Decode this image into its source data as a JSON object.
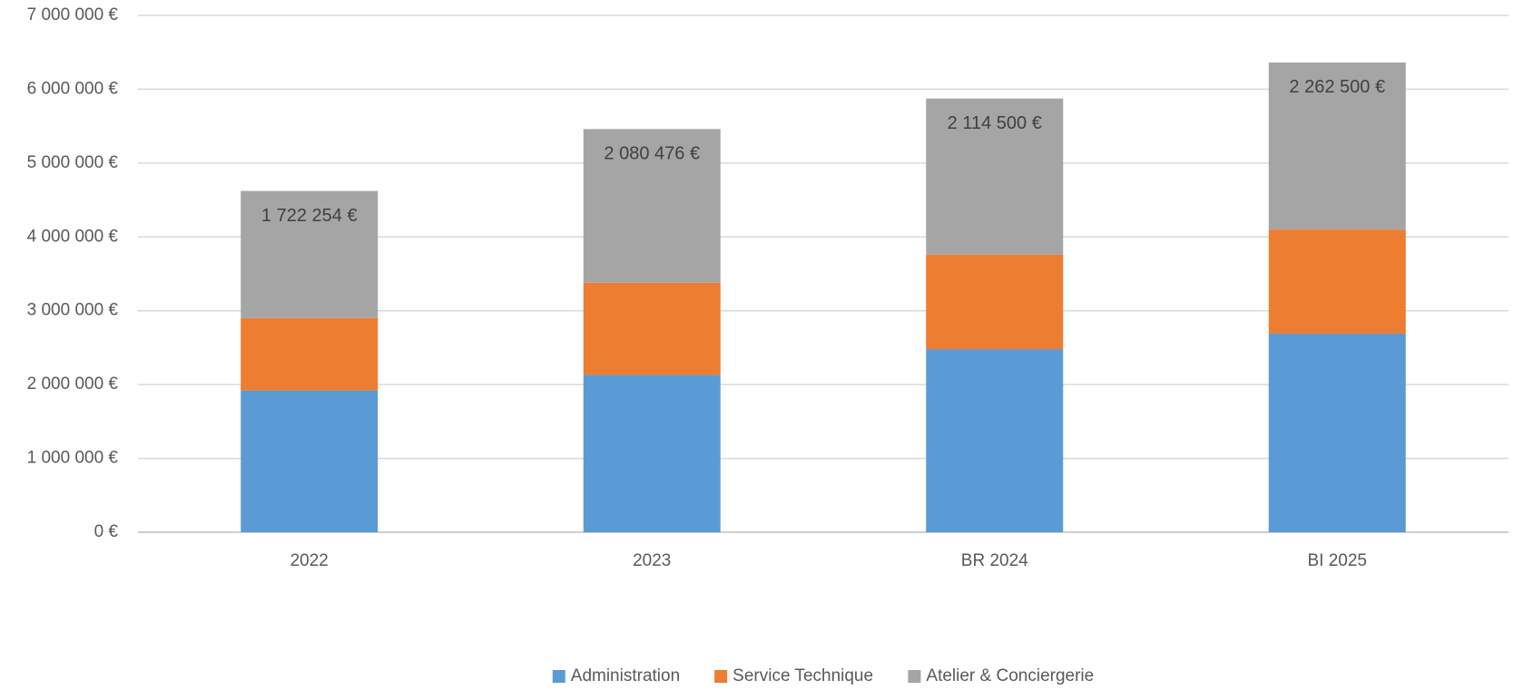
{
  "chart_data": {
    "type": "stacked_bar",
    "categories": [
      "2022",
      "2023",
      "BR 2024",
      "BI 2025"
    ],
    "series": [
      {
        "name": "Administration",
        "color": "#5b9bd5",
        "values": [
          1920000,
          2130000,
          2480000,
          2690000
        ]
      },
      {
        "name": "Service Technique",
        "color": "#ed7d31",
        "values": [
          980000,
          1250000,
          1280000,
          1410000
        ]
      },
      {
        "name": "Atelier & Conciergerie",
        "color": "#a5a5a5",
        "values": [
          1722254,
          2080476,
          2114500,
          2262500
        ],
        "value_labels": [
          "1 722 254 €",
          "2 080 476 €",
          "2 114 500 €",
          "2 262 500 €"
        ]
      }
    ],
    "ylim": [
      0,
      7000000
    ],
    "yticks": [
      {
        "value": 0,
        "label": "0 €"
      },
      {
        "value": 1000000,
        "label": "1 000 000 €"
      },
      {
        "value": 2000000,
        "label": "2 000 000 €"
      },
      {
        "value": 3000000,
        "label": "3 000 000 €"
      },
      {
        "value": 4000000,
        "label": "4 000 000 €"
      },
      {
        "value": 5000000,
        "label": "5 000 000 €"
      },
      {
        "value": 6000000,
        "label": "6 000 000 €"
      },
      {
        "value": 7000000,
        "label": "7 000 000 €"
      }
    ],
    "grid": true,
    "legend": "bottom"
  }
}
